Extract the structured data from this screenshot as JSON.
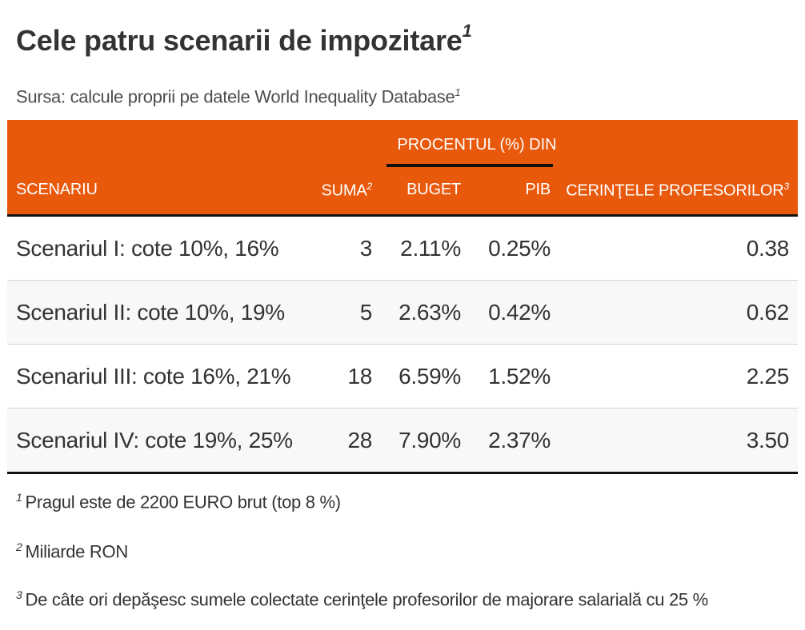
{
  "header": {
    "title": "Cele patru scenarii de impozitare",
    "title_sup": "1",
    "subtitle": "Sursa: calcule proprii pe datele World Inequality Database",
    "subtitle_sup": "1"
  },
  "chart_data": {
    "type": "table",
    "span_header": "PROCENTUL (%) DIN",
    "columns": [
      {
        "label": "SCENARIU",
        "sup": ""
      },
      {
        "label": "SUMA",
        "sup": "2"
      },
      {
        "label": "BUGET",
        "sup": ""
      },
      {
        "label": "PIB",
        "sup": ""
      },
      {
        "label": "CERINŢELE PROFESORILOR",
        "sup": "3"
      }
    ],
    "rows": [
      {
        "scenario": "Scenariul I: cote 10%, 16%",
        "suma": "3",
        "buget": "2.11%",
        "pib": "0.25%",
        "cerinte": "0.38"
      },
      {
        "scenario": "Scenariul II: cote 10%, 19%",
        "suma": "5",
        "buget": "2.63%",
        "pib": "0.42%",
        "cerinte": "0.62"
      },
      {
        "scenario": "Scenariul III: cote 16%, 21%",
        "suma": "18",
        "buget": "6.59%",
        "pib": "1.52%",
        "cerinte": "2.25"
      },
      {
        "scenario": "Scenariul IV: cote 19%, 25%",
        "suma": "28",
        "buget": "7.90%",
        "pib": "2.37%",
        "cerinte": "3.50"
      }
    ],
    "header_color": "#e8590c"
  },
  "footnotes": [
    {
      "mark": "1",
      "text": "Pragul este de 2200 EURO brut (top 8 %)"
    },
    {
      "mark": "2",
      "text": "Miliarde RON"
    },
    {
      "mark": "3",
      "text": "De câte ori depăşesc sumele colectate cerinţele profesorilor de majorare salarială cu 25 %"
    }
  ]
}
